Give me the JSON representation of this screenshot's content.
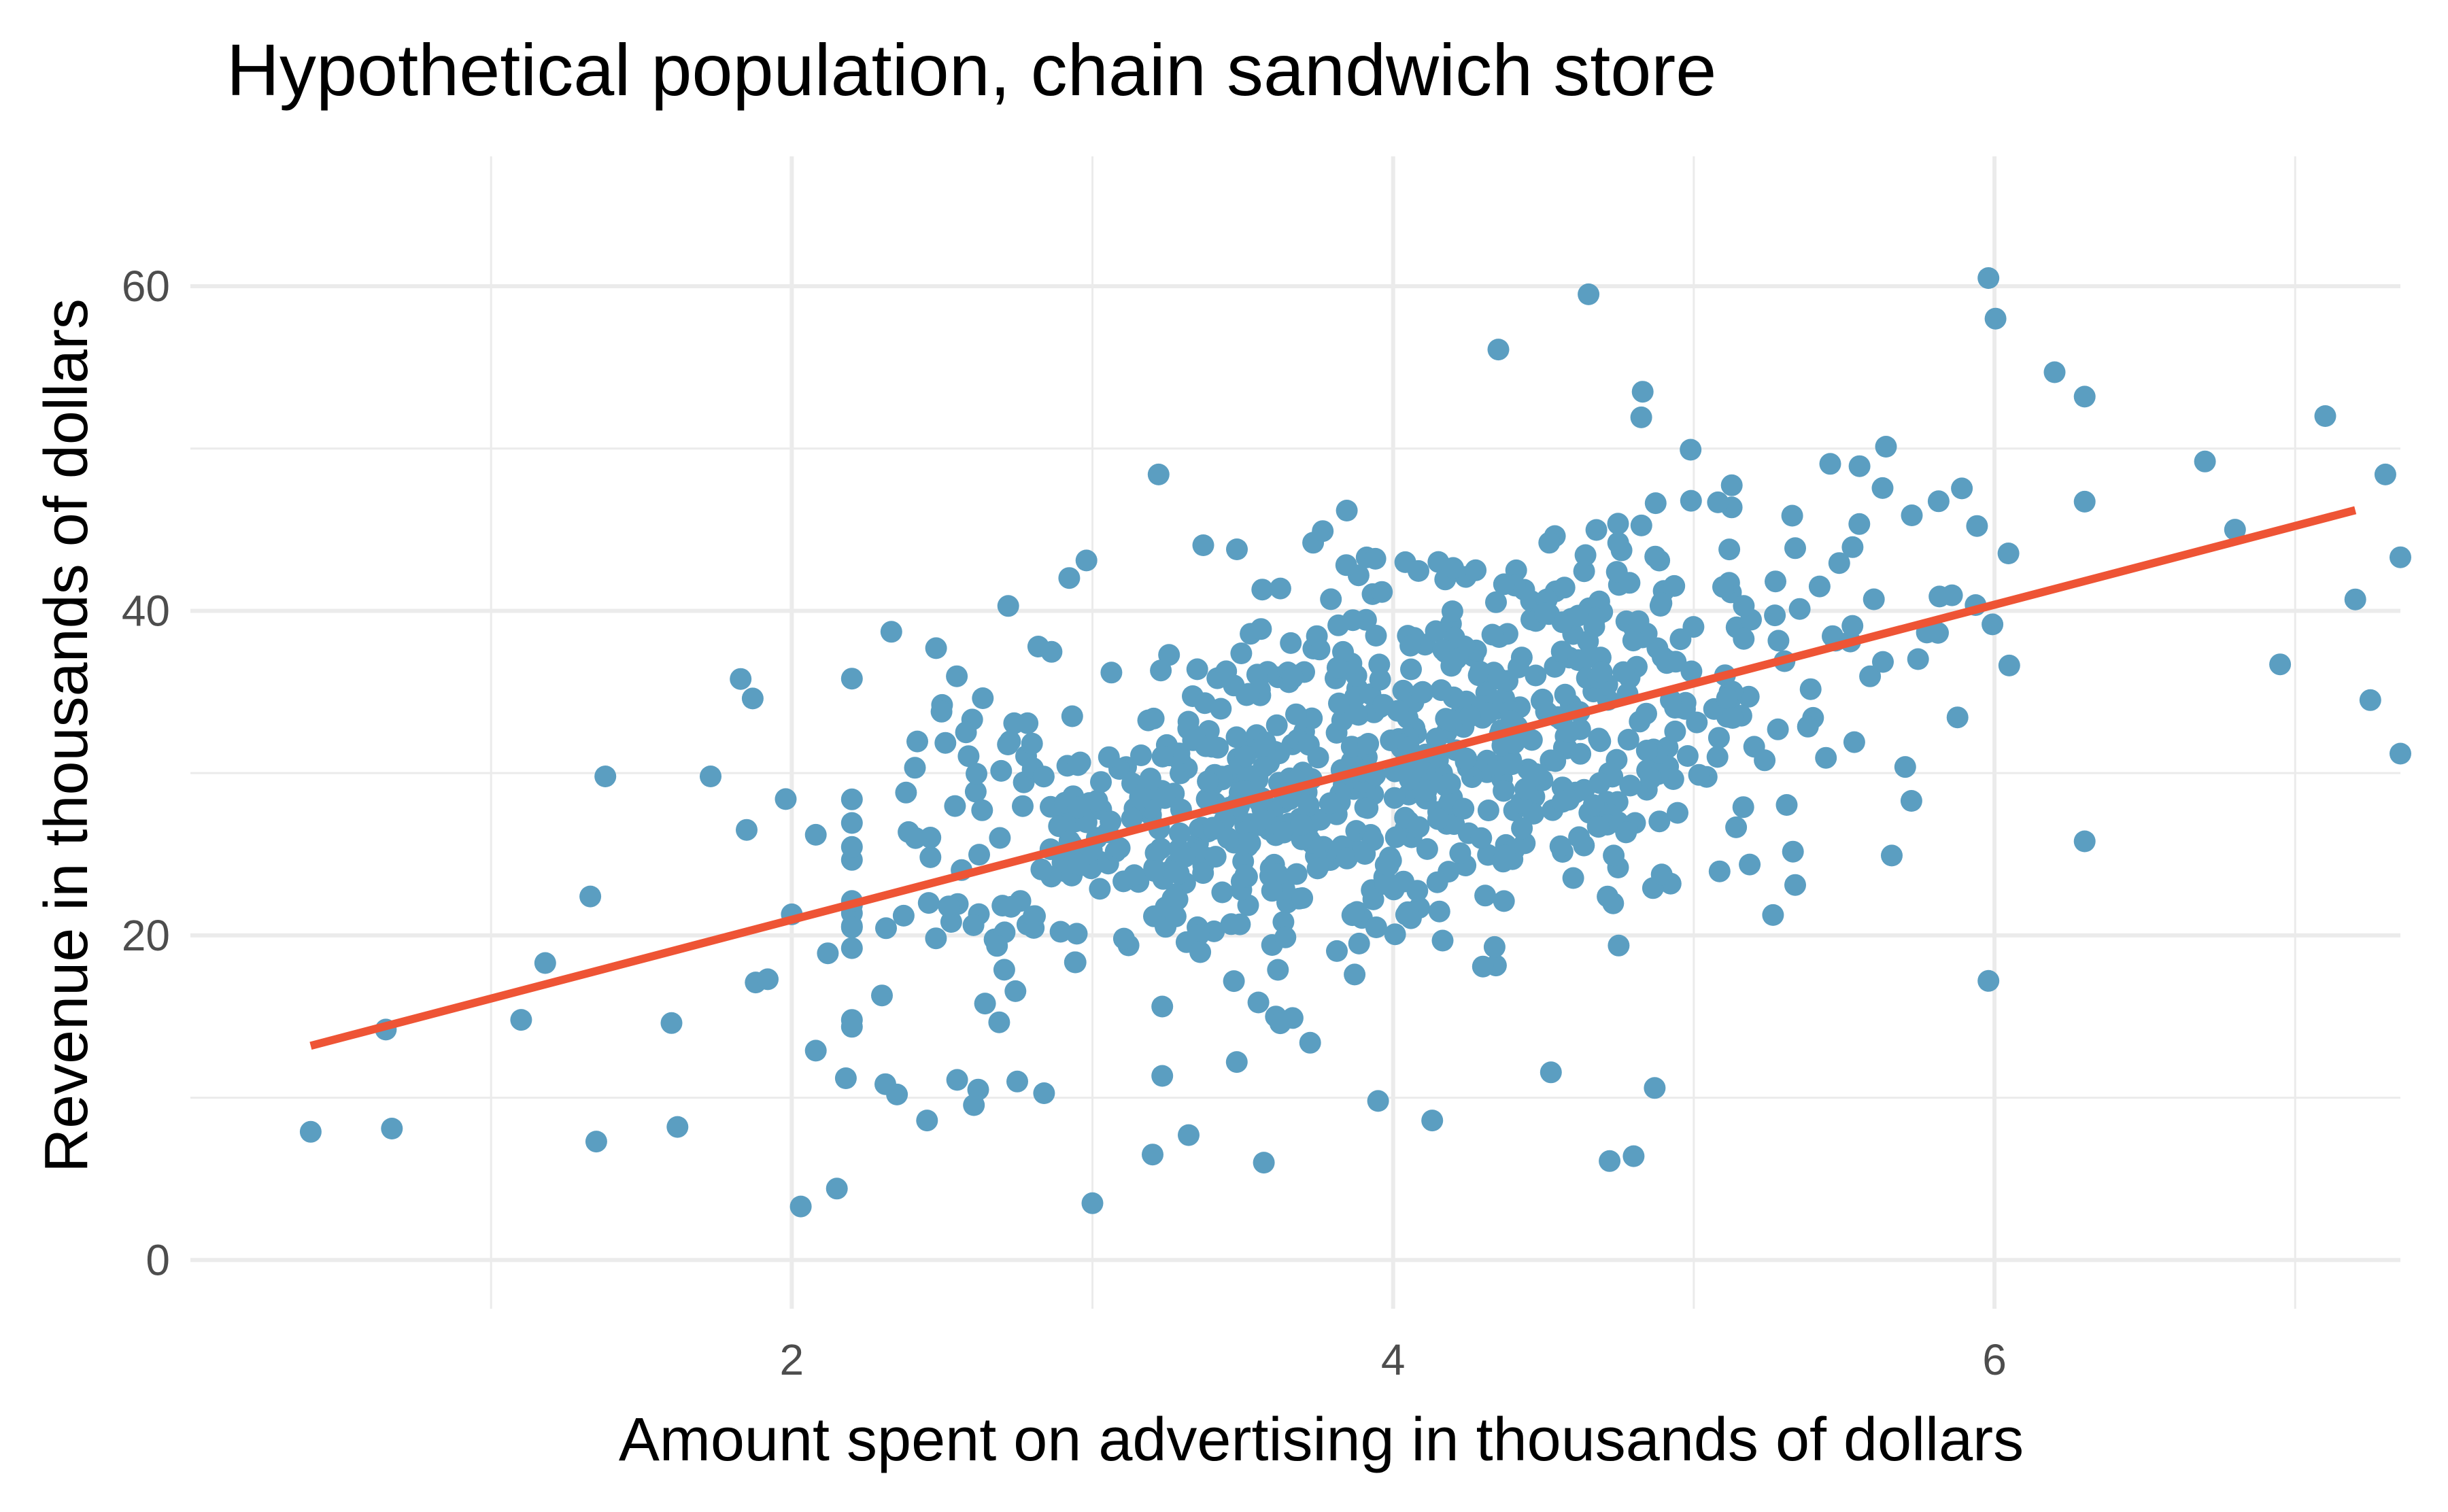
{
  "chart_data": {
    "type": "scatter",
    "title": "Hypothetical population, chain sandwich store",
    "xlabel": "Amount spent on advertising in thousands of dollars",
    "ylabel": "Revenue in thousands of dollars",
    "xlim": [
      0.0,
      7.35
    ],
    "ylim": [
      -3.0,
      68.0
    ],
    "x_ticks": [
      2,
      4,
      6
    ],
    "y_ticks": [
      0,
      20,
      40,
      60
    ],
    "x_minor_gridlines": [
      1,
      3,
      5,
      7
    ],
    "y_minor_gridlines": [
      10,
      30,
      50
    ],
    "grid": true,
    "legend": "none",
    "colors": {
      "points": "#5b9ec1",
      "fit_line": "#ee5435",
      "grid": "#ebebeb"
    },
    "fit_line": {
      "x": [
        0.4,
        7.2
      ],
      "y": [
        13.2,
        46.2
      ]
    },
    "outlier_points": [
      {
        "x": 0.4,
        "y": 7.9
      },
      {
        "x": 0.65,
        "y": 14.2
      },
      {
        "x": 0.67,
        "y": 8.1
      },
      {
        "x": 1.1,
        "y": 14.8
      },
      {
        "x": 1.18,
        "y": 18.3
      },
      {
        "x": 1.33,
        "y": 22.4
      },
      {
        "x": 1.35,
        "y": 7.3
      },
      {
        "x": 1.38,
        "y": 29.8
      },
      {
        "x": 1.6,
        "y": 14.6
      },
      {
        "x": 1.62,
        "y": 8.2
      },
      {
        "x": 1.73,
        "y": 29.8
      },
      {
        "x": 1.83,
        "y": 35.8
      },
      {
        "x": 1.85,
        "y": 26.5
      },
      {
        "x": 1.87,
        "y": 34.6
      },
      {
        "x": 1.88,
        "y": 17.1
      },
      {
        "x": 1.92,
        "y": 17.3
      },
      {
        "x": 1.98,
        "y": 28.4
      },
      {
        "x": 2.0,
        "y": 21.3
      },
      {
        "x": 2.03,
        "y": 3.3
      },
      {
        "x": 2.08,
        "y": 26.2
      },
      {
        "x": 2.08,
        "y": 12.9
      },
      {
        "x": 2.12,
        "y": 18.9
      },
      {
        "x": 2.15,
        "y": 4.4
      },
      {
        "x": 2.18,
        "y": 11.2
      },
      {
        "x": 2.3,
        "y": 16.3
      },
      {
        "x": 2.35,
        "y": 10.2
      },
      {
        "x": 2.38,
        "y": 28.8
      },
      {
        "x": 2.45,
        "y": 8.6
      },
      {
        "x": 2.48,
        "y": 37.7
      },
      {
        "x": 2.5,
        "y": 34.2
      },
      {
        "x": 2.55,
        "y": 11.1
      },
      {
        "x": 2.6,
        "y": 33.3
      },
      {
        "x": 2.62,
        "y": 10.5
      },
      {
        "x": 2.72,
        "y": 40.3
      },
      {
        "x": 2.75,
        "y": 11.0
      },
      {
        "x": 2.82,
        "y": 37.8
      },
      {
        "x": 2.98,
        "y": 43.1
      },
      {
        "x": 3.0,
        "y": 3.5
      },
      {
        "x": 3.2,
        "y": 6.5
      },
      {
        "x": 3.22,
        "y": 48.4
      },
      {
        "x": 3.32,
        "y": 7.7
      },
      {
        "x": 3.48,
        "y": 12.2
      },
      {
        "x": 3.57,
        "y": 6.0
      },
      {
        "x": 3.95,
        "y": 9.8
      },
      {
        "x": 4.13,
        "y": 8.6
      },
      {
        "x": 4.35,
        "y": 56.1
      },
      {
        "x": 4.65,
        "y": 59.5
      },
      {
        "x": 4.72,
        "y": 6.1
      },
      {
        "x": 4.8,
        "y": 6.4
      },
      {
        "x": 4.83,
        "y": 53.5
      },
      {
        "x": 4.87,
        "y": 10.6
      },
      {
        "x": 5.98,
        "y": 60.5
      },
      {
        "x": 5.98,
        "y": 17.2
      },
      {
        "x": 6.2,
        "y": 54.7
      },
      {
        "x": 6.3,
        "y": 25.8
      },
      {
        "x": 6.7,
        "y": 49.2
      },
      {
        "x": 6.8,
        "y": 45.0
      },
      {
        "x": 6.95,
        "y": 36.7
      },
      {
        "x": 7.1,
        "y": 52.0
      },
      {
        "x": 7.2,
        "y": 40.7
      },
      {
        "x": 7.25,
        "y": 34.5
      },
      {
        "x": 7.3,
        "y": 48.4
      },
      {
        "x": 7.35,
        "y": 31.2
      },
      {
        "x": 7.35,
        "y": 43.3
      }
    ],
    "cluster_summary": {
      "n_points": 900,
      "x_mean": 4.0,
      "x_sd": 0.85,
      "y_intercept": 11.25,
      "y_slope": 4.85,
      "y_residual_sd": 6.0
    }
  }
}
